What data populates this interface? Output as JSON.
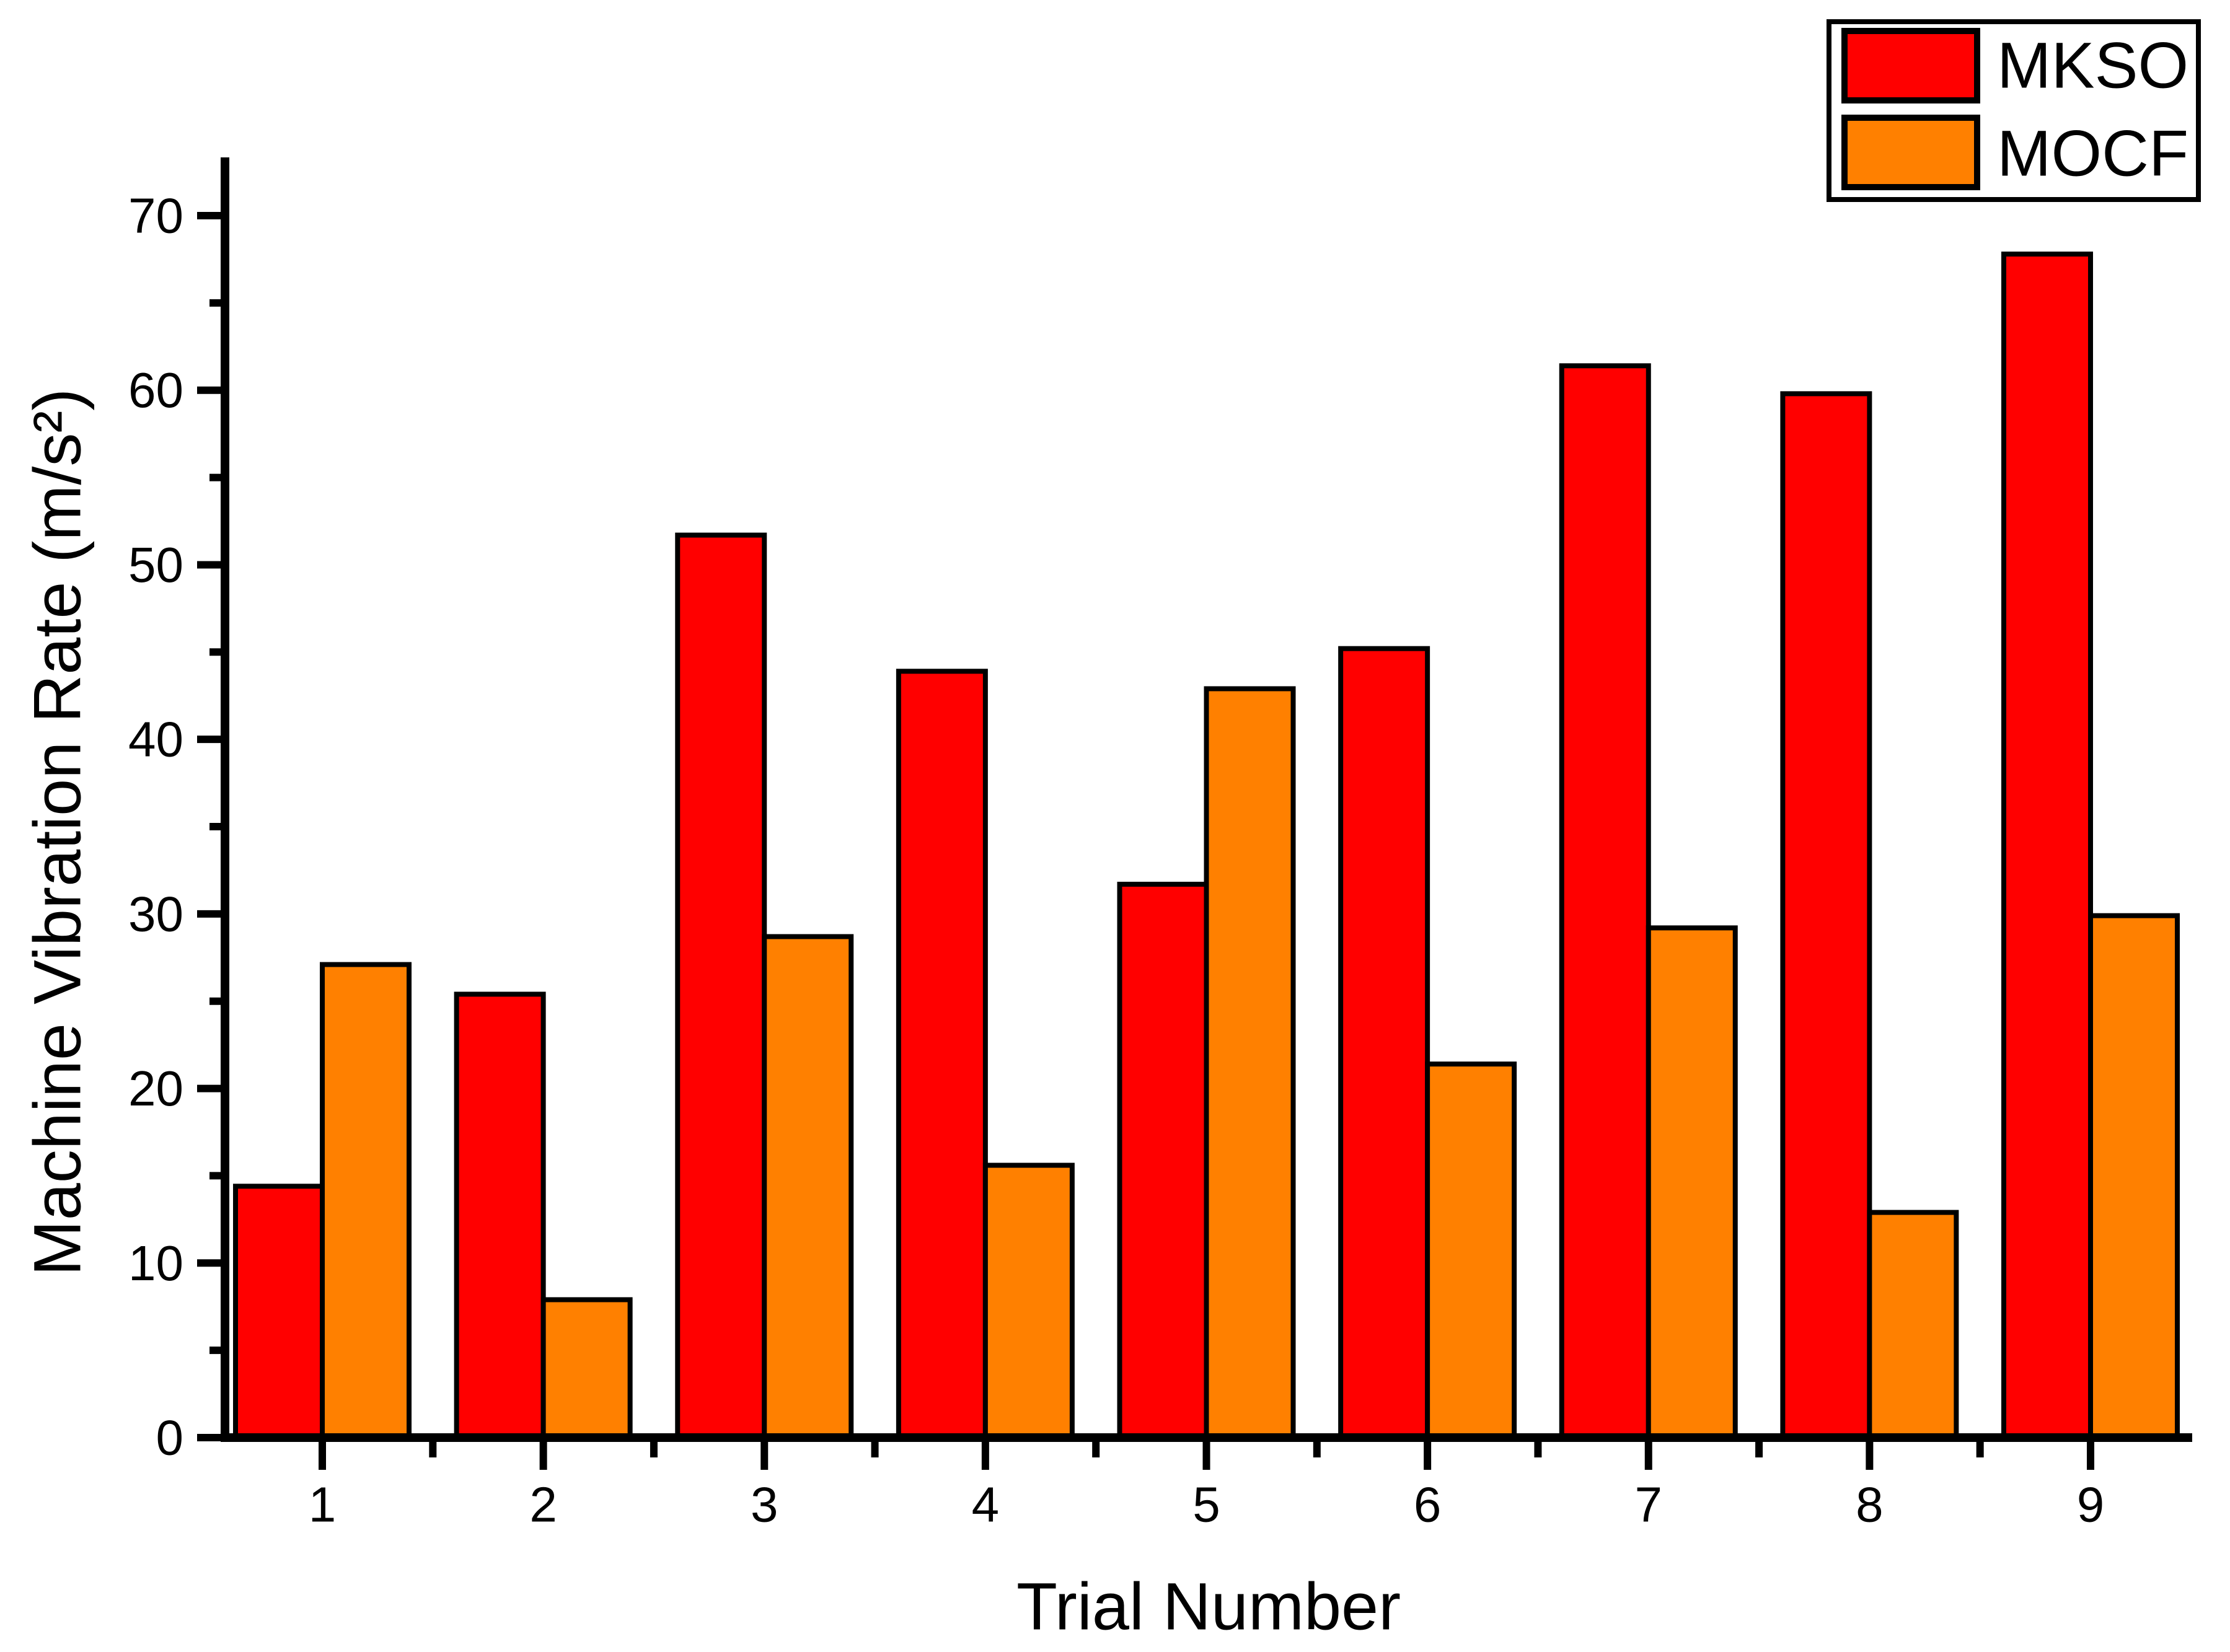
{
  "chart_data": {
    "type": "bar",
    "title": "",
    "xlabel": "Trial Number",
    "ylabel": "Machine Vibration Rate (m/s²)",
    "categories": [
      "1",
      "2",
      "3",
      "4",
      "5",
      "6",
      "7",
      "8",
      "9"
    ],
    "series": [
      {
        "name": "MKSO",
        "color": "#FF0000",
        "values": [
          14.4,
          25.4,
          51.7,
          43.9,
          31.7,
          45.2,
          61.4,
          59.8,
          67.8
        ]
      },
      {
        "name": "MOCF",
        "color": "#FF8000",
        "values": [
          27.1,
          7.9,
          28.7,
          15.6,
          42.9,
          21.4,
          29.2,
          12.9,
          29.9
        ]
      }
    ],
    "ylim": [
      0,
      73.3
    ],
    "yticks_major": [
      0,
      10,
      20,
      30,
      40,
      50,
      60,
      70
    ],
    "yticks_minor": [
      5,
      15,
      25,
      35,
      45,
      55,
      65
    ],
    "xticks_minor_at": [
      1.5,
      2.5,
      3.5,
      4.5,
      5.5,
      6.5,
      7.5,
      8.5
    ],
    "grid": false,
    "legend_position": "top-right",
    "bar_border_color": "#000000",
    "background_color": "#FFFFFF",
    "axis_color": "#000000"
  }
}
